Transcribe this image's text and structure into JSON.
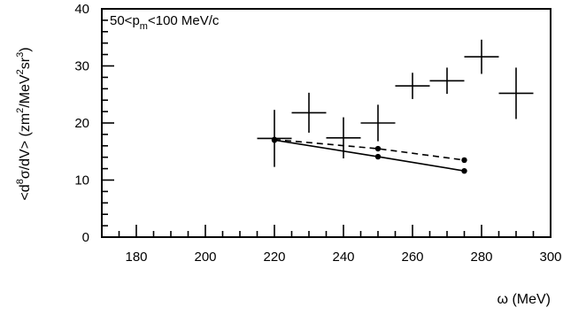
{
  "chart_data": {
    "type": "scatter",
    "annotation": {
      "main": "50<p",
      "sub": "m",
      "rest": "<100 MeV/c"
    },
    "xlabel": "ω (MeV)",
    "ylabel": {
      "p1": "<d",
      "s1": "8",
      "p2": "σ/dV> (zm",
      "s2": "2",
      "p3": "/MeV",
      "s3": "2",
      "p4": "sr",
      "s4": "3",
      "p5": ")"
    },
    "xlim": [
      170,
      300
    ],
    "ylim": [
      0,
      40
    ],
    "x_ticks": [
      180,
      200,
      220,
      240,
      260,
      280,
      300
    ],
    "y_ticks": [
      0,
      10,
      20,
      30,
      40
    ],
    "series": [
      {
        "style": "data-crosses",
        "points": [
          {
            "x": 220,
            "y": 17.3,
            "xerr": 5,
            "yerr": 5.0
          },
          {
            "x": 230,
            "y": 21.8,
            "xerr": 5,
            "yerr": 3.5
          },
          {
            "x": 240,
            "y": 17.4,
            "xerr": 5,
            "yerr": 3.6
          },
          {
            "x": 250,
            "y": 20.0,
            "xerr": 5,
            "yerr": 3.2
          },
          {
            "x": 260,
            "y": 26.5,
            "xerr": 5,
            "yerr": 2.3
          },
          {
            "x": 270,
            "y": 27.4,
            "xerr": 5,
            "yerr": 2.3
          },
          {
            "x": 280,
            "y": 31.6,
            "xerr": 5,
            "yerr": 3.0
          },
          {
            "x": 290,
            "y": 25.2,
            "xerr": 5,
            "yerr": 4.5
          }
        ]
      },
      {
        "style": "dashed",
        "points": [
          {
            "x": 220,
            "y": 17.1
          },
          {
            "x": 250,
            "y": 15.5
          },
          {
            "x": 275,
            "y": 13.5
          }
        ]
      },
      {
        "style": "solid",
        "points": [
          {
            "x": 220,
            "y": 17.0
          },
          {
            "x": 250,
            "y": 14.1
          },
          {
            "x": 275,
            "y": 11.6
          }
        ]
      }
    ]
  }
}
